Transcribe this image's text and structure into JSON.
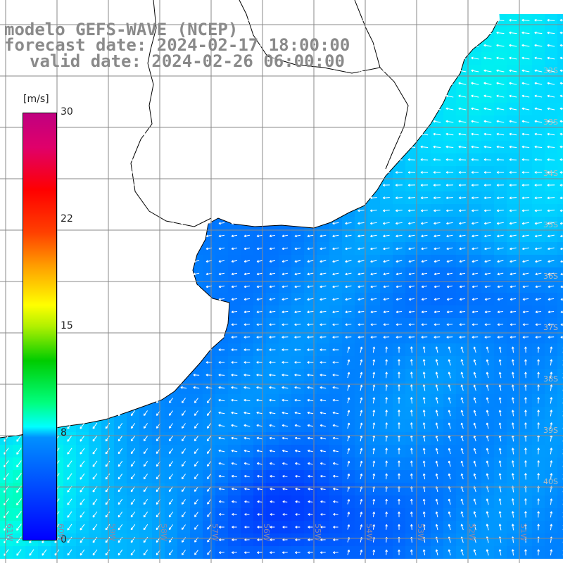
{
  "title": {
    "model": "modelo GEFS-WAVE (NCEP)",
    "forecast": "forecast date: 2024-02-17 18:00:00",
    "valid": "valid date: 2024-02-26 06:00:00"
  },
  "colorbar": {
    "units": "[m/s]",
    "ticks": [
      "30",
      "22",
      "15",
      "8",
      "0"
    ],
    "colors": [
      "#0000ff",
      "#0090ff",
      "#00ffff",
      "#00cc00",
      "#ffff00",
      "#ff0000",
      "#c00080"
    ]
  },
  "map": {
    "latitude_labels": [
      "32S",
      "33S",
      "34S",
      "35S",
      "36S",
      "37S",
      "38S",
      "39S",
      "40S"
    ],
    "longitude_labels": [
      "61W",
      "60W",
      "59W",
      "58W",
      "57W",
      "56W",
      "55W",
      "54W",
      "53W",
      "52W",
      "51W"
    ],
    "ocean_color_low": "#0033ff",
    "ocean_color_high": "#00ffee",
    "land_color": "#ffffff",
    "grid_color": "#888888",
    "coast_color": "#000000",
    "arrow_color": "#ffffff"
  }
}
